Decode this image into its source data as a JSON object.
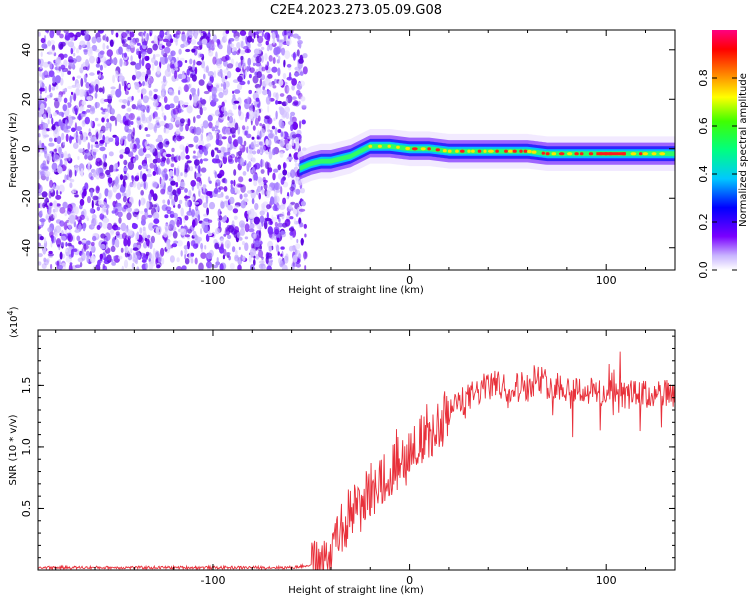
{
  "title": "C2E4.2023.273.05.09.G08",
  "chart_data": [
    {
      "type": "heatmap",
      "xlabel": "Height of straight line (km)",
      "ylabel": "Frequency (Hz)",
      "xlim": [
        -189,
        135
      ],
      "ylim": [
        -49,
        48
      ],
      "xticks": [
        -100,
        0,
        100
      ],
      "yticks": [
        -40,
        -20,
        0,
        20,
        40
      ],
      "noise_region_x": [
        -189,
        -56
      ],
      "signal_track": [
        {
          "x": -56,
          "y": -8
        },
        {
          "x": -50,
          "y": -6
        },
        {
          "x": -45,
          "y": -5
        },
        {
          "x": -40,
          "y": -5
        },
        {
          "x": -35,
          "y": -4
        },
        {
          "x": -30,
          "y": -3
        },
        {
          "x": -25,
          "y": -1
        },
        {
          "x": -20,
          "y": 1
        },
        {
          "x": -15,
          "y": 1
        },
        {
          "x": -10,
          "y": 1
        },
        {
          "x": 0,
          "y": 0
        },
        {
          "x": 10,
          "y": 0
        },
        {
          "x": 20,
          "y": -1
        },
        {
          "x": 30,
          "y": -1
        },
        {
          "x": 40,
          "y": -1
        },
        {
          "x": 50,
          "y": -1
        },
        {
          "x": 60,
          "y": -1
        },
        {
          "x": 70,
          "y": -2
        },
        {
          "x": 80,
          "y": -2
        },
        {
          "x": 90,
          "y": -2
        },
        {
          "x": 100,
          "y": -2
        },
        {
          "x": 110,
          "y": -2
        },
        {
          "x": 120,
          "y": -2
        },
        {
          "x": 135,
          "y": -2
        }
      ],
      "colorbar": {
        "label": "Normalized spectral amplitude",
        "range": [
          0,
          1
        ],
        "ticks": [
          "0.0",
          "0.2",
          "0.4",
          "0.6",
          "0.8"
        ]
      }
    },
    {
      "type": "line",
      "xlabel": "Height of straight line (km)",
      "ylabel": "SNR (10 * v/v)",
      "multiplier": "(x10",
      "multiplier_exp": "4",
      "multiplier_close": ")",
      "xlim": [
        -189,
        135
      ],
      "ylim": [
        0,
        1.95
      ],
      "xticks": [
        -100,
        0,
        100
      ],
      "yticks": [
        "0.5",
        "1.0",
        "1.5"
      ],
      "ytick_values": [
        0.5,
        1.0,
        1.5
      ],
      "color": "#e8303a",
      "series": [
        {
          "x": [
            -189,
            -100,
            -60,
            -45,
            -40,
            -35,
            -30,
            -25,
            -20,
            -15,
            -10,
            -5,
            0,
            5,
            10,
            15,
            20,
            25,
            30,
            35,
            40,
            45,
            50,
            55,
            60,
            65,
            70,
            75,
            80,
            85,
            90,
            95,
            100,
            105,
            110,
            115,
            120,
            125,
            130,
            135
          ],
          "values": [
            0.02,
            0.02,
            0.02,
            0.05,
            0.15,
            0.3,
            0.45,
            0.55,
            0.65,
            0.75,
            0.85,
            0.92,
            1.0,
            1.05,
            1.1,
            1.2,
            1.3,
            1.35,
            1.4,
            1.45,
            1.5,
            1.5,
            1.48,
            1.5,
            1.5,
            1.55,
            1.52,
            1.5,
            1.48,
            1.47,
            1.45,
            1.45,
            1.43,
            1.42,
            1.42,
            1.43,
            1.42,
            1.42,
            1.45,
            1.38
          ]
        }
      ]
    }
  ]
}
